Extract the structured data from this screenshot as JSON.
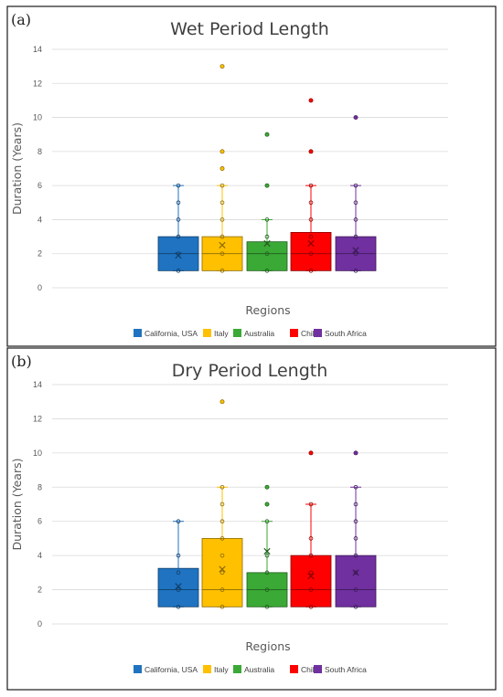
{
  "chart_data": [
    {
      "type": "box",
      "panel_label": "(a)",
      "title": "Wet Period Length",
      "xlabel": "Regions",
      "ylabel": "Duration (Years)",
      "ylim": [
        0,
        14
      ],
      "yticks": [
        0,
        2,
        4,
        6,
        8,
        10,
        12,
        14
      ],
      "grid": true,
      "legend_position": "bottom",
      "series": [
        {
          "name": "California, USA",
          "color": "#1f73c1",
          "min": 1,
          "q1": 1,
          "median": 2,
          "q3": 3,
          "max": 6,
          "mean": 1.9,
          "points": [
            1,
            2,
            3,
            4,
            5,
            6
          ],
          "outliers": []
        },
        {
          "name": "Italy",
          "color": "#ffc000",
          "min": 1,
          "q1": 1,
          "median": 2,
          "q3": 3,
          "max": 6,
          "mean": 2.5,
          "points": [
            1,
            2,
            3,
            4,
            5,
            6
          ],
          "outliers": [
            7,
            8,
            13
          ]
        },
        {
          "name": "Australia",
          "color": "#3aa935",
          "min": 1,
          "q1": 1,
          "median": 2,
          "q3": 2.7,
          "max": 4,
          "mean": 2.6,
          "points": [
            1,
            2,
            3,
            4
          ],
          "outliers": [
            6,
            9
          ]
        },
        {
          "name": "Chile",
          "color": "#ff0000",
          "min": 1,
          "q1": 1,
          "median": 2,
          "q3": 3.25,
          "max": 6,
          "mean": 2.6,
          "points": [
            1,
            2,
            3,
            4,
            5,
            6
          ],
          "outliers": [
            8,
            11
          ]
        },
        {
          "name": "South Africa",
          "color": "#7030a0",
          "min": 1,
          "q1": 1,
          "median": 2,
          "q3": 3,
          "max": 6,
          "mean": 2.2,
          "points": [
            1,
            2,
            3,
            4,
            5,
            6
          ],
          "outliers": [
            10
          ]
        }
      ]
    },
    {
      "type": "box",
      "panel_label": "(b)",
      "title": "Dry Period Length",
      "xlabel": "Regions",
      "ylabel": "Duration (Years)",
      "ylim": [
        0,
        14
      ],
      "yticks": [
        0,
        2,
        4,
        6,
        8,
        10,
        12,
        14
      ],
      "grid": true,
      "legend_position": "bottom",
      "series": [
        {
          "name": "California, USA",
          "color": "#1f73c1",
          "min": 1,
          "q1": 1,
          "median": 2,
          "q3": 3.25,
          "max": 6,
          "mean": 2.2,
          "points": [
            1,
            2,
            3,
            4,
            6
          ],
          "outliers": []
        },
        {
          "name": "Italy",
          "color": "#ffc000",
          "min": 1,
          "q1": 1,
          "median": 2,
          "q3": 5,
          "max": 8,
          "mean": 3.2,
          "points": [
            1,
            2,
            3,
            4,
            5,
            6,
            7,
            8
          ],
          "outliers": [
            13
          ]
        },
        {
          "name": "Australia",
          "color": "#3aa935",
          "min": 1,
          "q1": 1,
          "median": 2,
          "q3": 3,
          "max": 6,
          "mean": 4.25,
          "points": [
            1,
            2,
            3,
            4,
            6
          ],
          "outliers": [
            7,
            8
          ]
        },
        {
          "name": "Chile",
          "color": "#ff0000",
          "min": 1,
          "q1": 1,
          "median": 2,
          "q3": 4,
          "max": 7,
          "mean": 2.8,
          "points": [
            1,
            2,
            3,
            4,
            5,
            7
          ],
          "outliers": [
            10
          ]
        },
        {
          "name": "South Africa",
          "color": "#7030a0",
          "min": 1,
          "q1": 1,
          "median": 2,
          "q3": 4,
          "max": 8,
          "mean": 3,
          "points": [
            1,
            2,
            3,
            4,
            5,
            6,
            7,
            8
          ],
          "outliers": [
            10
          ]
        }
      ]
    }
  ]
}
